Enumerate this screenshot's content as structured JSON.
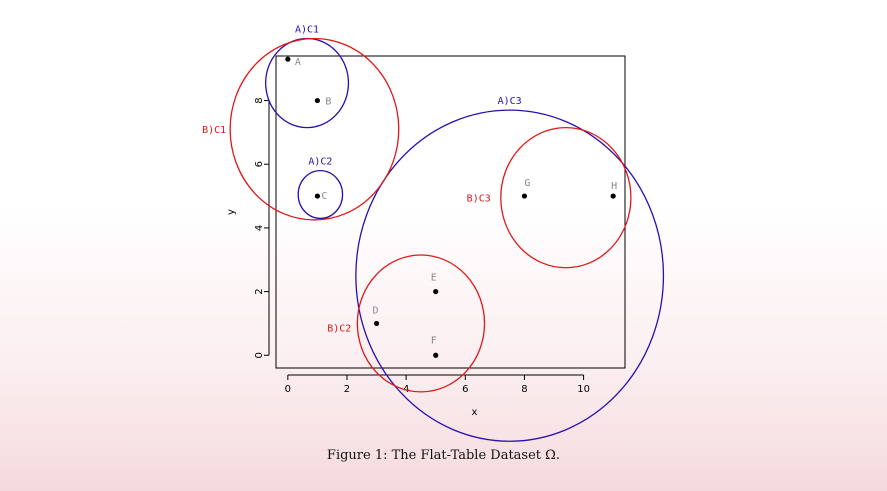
{
  "chart_data": {
    "type": "scatter",
    "xlabel": "x",
    "ylabel": "y",
    "xlim": [
      -0.4,
      11.4
    ],
    "ylim": [
      -0.4,
      9.4
    ],
    "x_ticks": [
      0,
      2,
      4,
      6,
      8,
      10
    ],
    "y_ticks": [
      0,
      2,
      4,
      6,
      8
    ],
    "points": [
      {
        "label": "A",
        "x": 0,
        "y": 9.3
      },
      {
        "label": "B",
        "x": 1,
        "y": 8.0
      },
      {
        "label": "C",
        "x": 1,
        "y": 5.0
      },
      {
        "label": "D",
        "x": 3,
        "y": 1.0
      },
      {
        "label": "E",
        "x": 5,
        "y": 2.0
      },
      {
        "label": "F",
        "x": 5,
        "y": 0.0
      },
      {
        "label": "G",
        "x": 8,
        "y": 5.0
      },
      {
        "label": "H",
        "x": 11,
        "y": 5.0
      }
    ],
    "circles": [
      {
        "label": "A)C1",
        "cx": 0.65,
        "cy": 8.55,
        "r": 1.4,
        "color": "#2a0fb0"
      },
      {
        "label": "A)C2",
        "cx": 1.1,
        "cy": 5.05,
        "r": 0.75,
        "color": "#2a0fb0"
      },
      {
        "label": "A)C3",
        "cx": 7.5,
        "cy": 2.5,
        "r": 5.2,
        "color": "#2a0fb0"
      },
      {
        "label": "B)C1",
        "cx": 0.9,
        "cy": 7.1,
        "r": 2.85,
        "color": "#e01818"
      },
      {
        "label": "B)C2",
        "cx": 4.5,
        "cy": 1.0,
        "r": 2.15,
        "color": "#e01818"
      },
      {
        "label": "B)C3",
        "cx": 9.4,
        "cy": 4.95,
        "r": 2.2,
        "color": "#e01818"
      }
    ]
  },
  "caption": "Figure 1: The Flat-Table Dataset Ω."
}
